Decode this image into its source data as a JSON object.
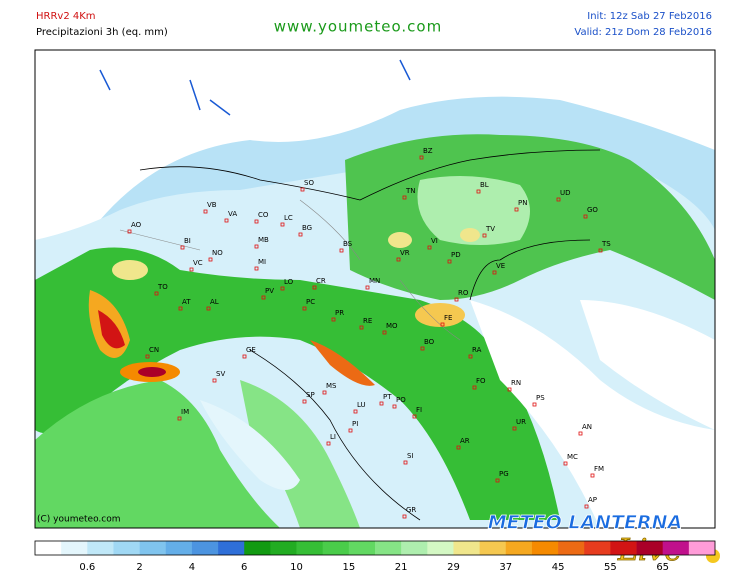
{
  "header": {
    "model": "HRRv2  4Km",
    "product": "Precipitazioni 3h (eq. mm)",
    "site": "www.youmeteo.com",
    "init": "Init: 12z Sab  27 Feb2016",
    "valid": "Valid: 21z Dom 28 Feb2016"
  },
  "map": {
    "copyright": "(C) youmeteo.com",
    "cities": [
      "BZ",
      "SO",
      "TN",
      "BL",
      "UD",
      "PN",
      "GO",
      "TS",
      "AO",
      "VB",
      "VA",
      "CO",
      "LC",
      "BI",
      "NO",
      "MB",
      "BG",
      "BS",
      "VR",
      "VI",
      "TV",
      "PD",
      "VE",
      "VC",
      "MI",
      "TO",
      "AT",
      "AL",
      "PV",
      "LO",
      "CR",
      "MN",
      "RO",
      "FE",
      "CN",
      "GE",
      "SV",
      "PC",
      "PR",
      "RE",
      "MO",
      "BO",
      "RA",
      "IM",
      "SP",
      "MS",
      "LU",
      "PT",
      "PO",
      "FI",
      "FO",
      "RN",
      "PS",
      "PI",
      "LI",
      "AR",
      "UR",
      "AN",
      "SI",
      "PG",
      "MC",
      "FM",
      "AP",
      "GR"
    ]
  },
  "logo": {
    "title": "METEO LANTERNA",
    "subtitle": "Live"
  },
  "colorbar": {
    "colors": [
      "#ffffff",
      "#e4f6fc",
      "#c0e8f8",
      "#a0d8f4",
      "#80c4ee",
      "#64aee8",
      "#4c94e0",
      "#2f6fd8",
      "#129a12",
      "#22ac22",
      "#36be36",
      "#4acc4a",
      "#62d862",
      "#86e486",
      "#aeeeae",
      "#d4f8c4",
      "#f0e68c",
      "#f5c850",
      "#f5a820",
      "#f58a00",
      "#ec6a14",
      "#e63c1e",
      "#d21414",
      "#aa0028",
      "#c0108c",
      "#ff9cd8"
    ],
    "ticks": [
      0.6,
      2,
      4,
      6,
      10,
      15,
      21,
      29,
      37,
      45,
      55,
      65
    ]
  }
}
